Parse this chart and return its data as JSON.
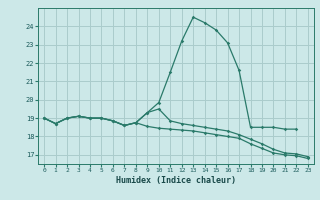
{
  "title": "",
  "xlabel": "Humidex (Indice chaleur)",
  "bg_color": "#cce8e8",
  "grid_color": "#aacccc",
  "line_color": "#2a7a6a",
  "xmin": -0.5,
  "xmax": 23.5,
  "ymin": 16.5,
  "ymax": 25.0,
  "yticks": [
    17,
    18,
    19,
    20,
    21,
    22,
    23,
    24
  ],
  "xticks": [
    0,
    1,
    2,
    3,
    4,
    5,
    6,
    7,
    8,
    9,
    10,
    11,
    12,
    13,
    14,
    15,
    16,
    17,
    18,
    19,
    20,
    21,
    22,
    23
  ],
  "line1_x": [
    0,
    1,
    2,
    3,
    4,
    5,
    6,
    7,
    8,
    9,
    10,
    11,
    12,
    13,
    14,
    15,
    16,
    17,
    18,
    19,
    20,
    21,
    22
  ],
  "line1_y": [
    19.0,
    18.7,
    19.0,
    19.1,
    19.0,
    19.0,
    18.85,
    18.6,
    18.75,
    19.3,
    19.85,
    21.5,
    23.2,
    24.5,
    24.2,
    23.8,
    23.1,
    21.6,
    18.5,
    18.5,
    18.5,
    18.4,
    18.4
  ],
  "line2_x": [
    0,
    1,
    2,
    3,
    4,
    5,
    6,
    7,
    8,
    9,
    10,
    11,
    12,
    13,
    14,
    15,
    16,
    17,
    18,
    19,
    20,
    21,
    22,
    23
  ],
  "line2_y": [
    19.0,
    18.7,
    19.0,
    19.1,
    19.0,
    19.0,
    18.85,
    18.6,
    18.75,
    19.3,
    19.5,
    18.85,
    18.7,
    18.6,
    18.5,
    18.4,
    18.3,
    18.1,
    17.85,
    17.6,
    17.3,
    17.1,
    17.05,
    16.9
  ],
  "line3_x": [
    0,
    1,
    2,
    3,
    4,
    5,
    6,
    7,
    8,
    9,
    10,
    11,
    12,
    13,
    14,
    15,
    16,
    17,
    18,
    19,
    20,
    21,
    22,
    23
  ],
  "line3_y": [
    19.0,
    18.7,
    19.0,
    19.1,
    19.0,
    19.0,
    18.85,
    18.6,
    18.75,
    18.55,
    18.45,
    18.4,
    18.35,
    18.3,
    18.2,
    18.1,
    18.0,
    17.9,
    17.6,
    17.35,
    17.1,
    17.0,
    16.95,
    16.8
  ]
}
